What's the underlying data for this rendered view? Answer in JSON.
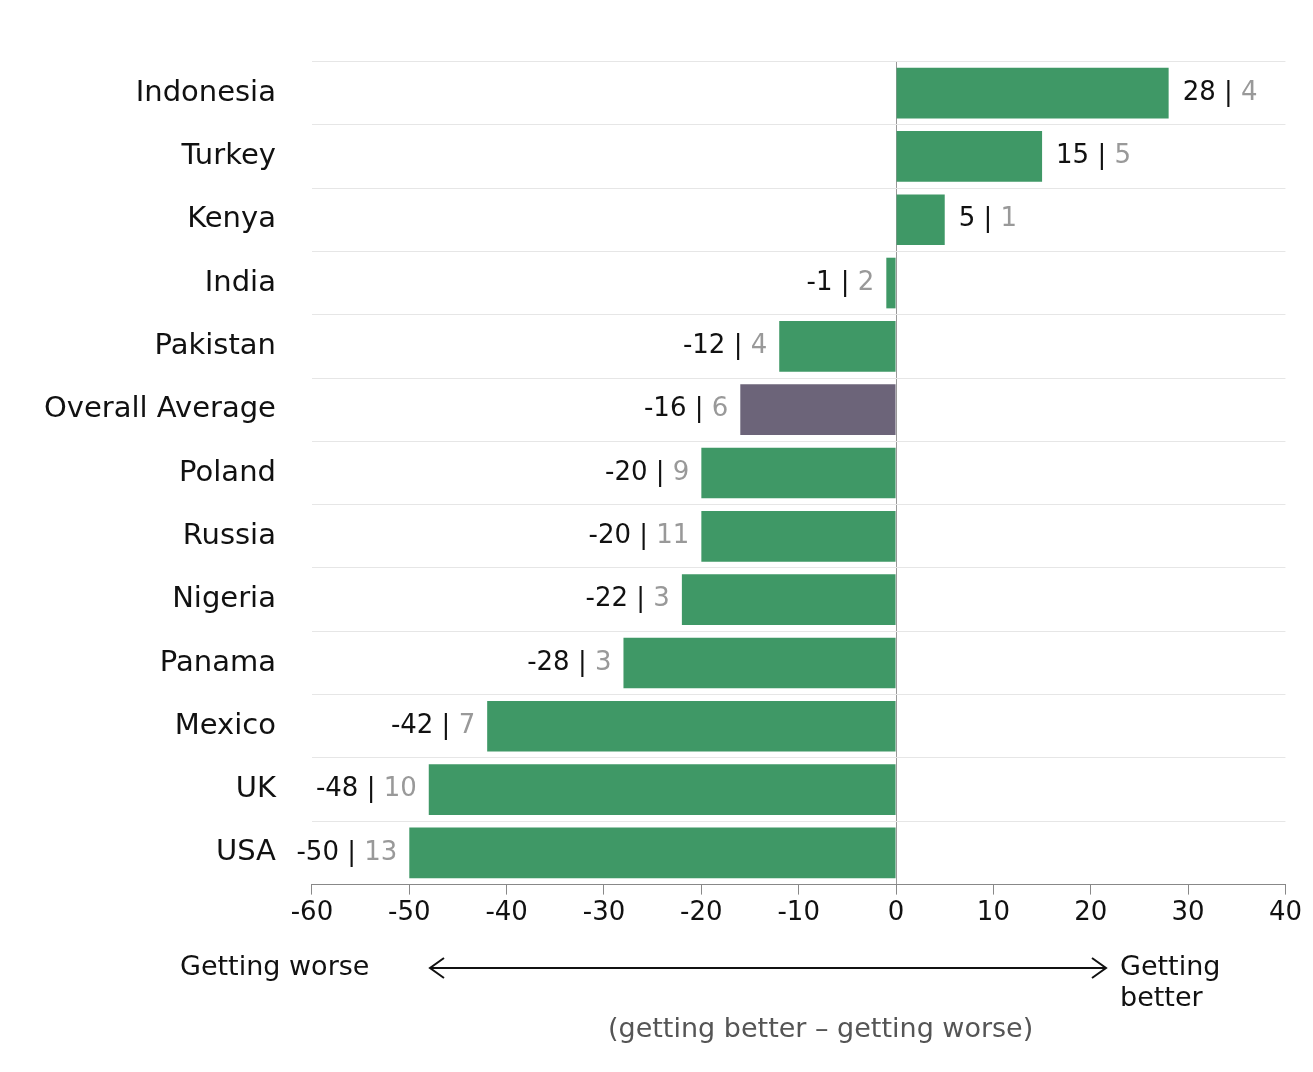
{
  "chart_data": {
    "type": "bar",
    "orientation": "horizontal",
    "xlabel": "(getting better – getting worse)",
    "categories": [
      "Indonesia",
      "Turkey",
      "Kenya",
      "India",
      "Pakistan",
      "Overall Average",
      "Poland",
      "Russia",
      "Nigeria",
      "Panama",
      "Mexico",
      "UK",
      "USA"
    ],
    "values": [
      28,
      15,
      5,
      -1,
      -12,
      -16,
      -20,
      -20,
      -22,
      -28,
      -42,
      -48,
      -50
    ],
    "colors": [
      "#3f9866",
      "#3f9866",
      "#3f9866",
      "#3f9866",
      "#3f9866",
      "#6c6479",
      "#3f9866",
      "#3f9866",
      "#3f9866",
      "#3f9866",
      "#3f9866",
      "#3f9866",
      "#3f9866"
    ],
    "value_labels": [
      "28 | 4",
      "15 | 5",
      "5 | 1",
      "-1 | 2",
      "-12 | 4",
      "-16 | 6",
      "-20 | 9",
      "-20 | 11",
      "-22 | 3",
      "-28 | 3",
      "-42 | 7",
      "-48 | 10",
      "-50 | 13"
    ],
    "xlim": [
      -60,
      40
    ],
    "xticks": [
      -60,
      -50,
      -40,
      -30,
      -20,
      -10,
      0,
      10,
      20,
      30,
      40
    ],
    "grid": "y",
    "legend": false,
    "annotations": [
      "Getting worse",
      "Getting better"
    ]
  }
}
